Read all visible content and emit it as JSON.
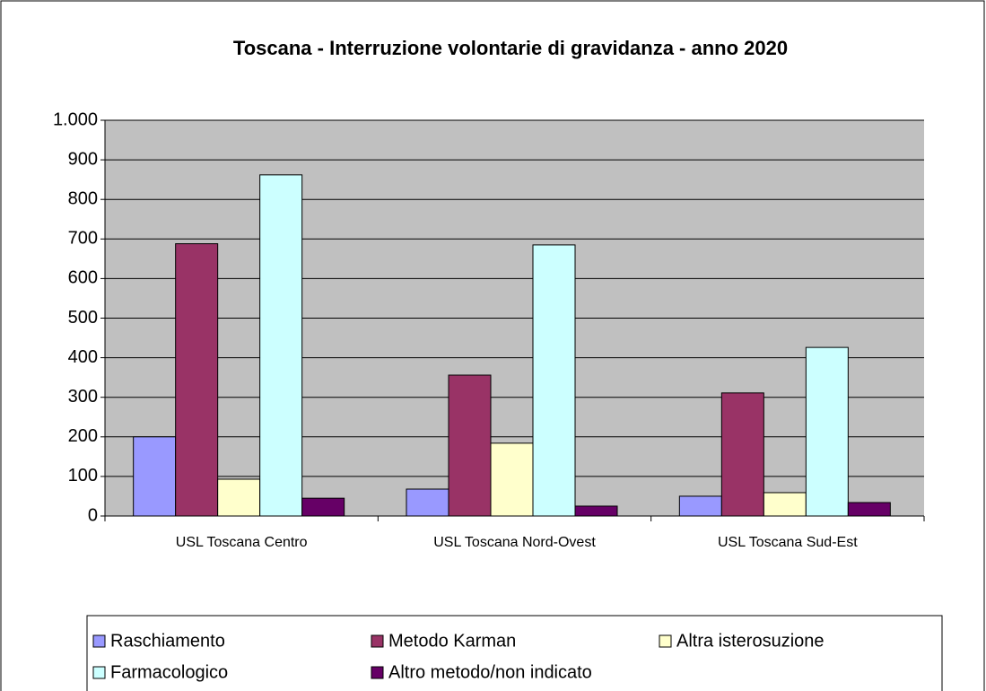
{
  "chart_data": {
    "type": "bar",
    "title": "Toscana - Interruzione volontarie di gravidanza - anno 2020",
    "categories": [
      "USL Toscana Centro",
      "USL Toscana Nord-Ovest",
      "USL Toscana Sud-Est"
    ],
    "series": [
      {
        "name": "Raschiamento",
        "color": "#9999ff",
        "values": [
          200,
          68,
          50
        ]
      },
      {
        "name": "Metodo Karman",
        "color": "#993366",
        "values": [
          688,
          356,
          311
        ]
      },
      {
        "name": "Altra isterosuzione",
        "color": "#ffffcc",
        "values": [
          93,
          184,
          59
        ]
      },
      {
        "name": "Farmacologico",
        "color": "#ccffff",
        "values": [
          862,
          685,
          426
        ]
      },
      {
        "name": "Altro metodo/non indicato",
        "color": "#660066",
        "values": [
          45,
          25,
          34
        ]
      }
    ],
    "ylim": [
      0,
      1000
    ],
    "yticks": [
      0,
      100,
      200,
      300,
      400,
      500,
      600,
      700,
      800,
      900,
      {
        "value": 1000,
        "label": "1.000"
      }
    ],
    "grid": true,
    "legend": "bottom"
  }
}
